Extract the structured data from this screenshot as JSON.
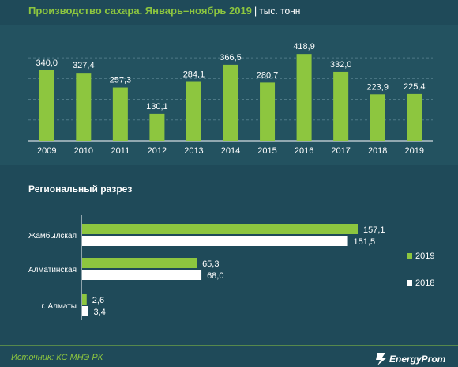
{
  "title": "Производство сахара. Январь–ноябрь 2019",
  "title_separator": "|",
  "unit": "тыс. тонн",
  "source": "Источник: КС МНЭ РК",
  "brand": "EnergyProm",
  "colors": {
    "background": "#1f4a59",
    "bar_2019": "#8dc63f",
    "bar_2018": "#ffffff",
    "grid": "#4e7a87",
    "text": "#ffffff",
    "accent": "#8dc63f"
  },
  "chart_data": [
    {
      "type": "bar",
      "title": "",
      "categories": [
        "2009",
        "2010",
        "2011",
        "2012",
        "2013",
        "2014",
        "2015",
        "2016",
        "2017",
        "2018",
        "2019"
      ],
      "values": [
        340.0,
        327.4,
        257.3,
        130.1,
        284.1,
        366.5,
        280.7,
        418.9,
        332.0,
        223.9,
        225.4
      ],
      "value_labels": [
        "340,0",
        "327,4",
        "257,3",
        "130,1",
        "284,1",
        "366,5",
        "280,7",
        "418,9",
        "332,0",
        "223,9",
        "225,4"
      ],
      "ylim": [
        0,
        450
      ],
      "grid": true,
      "legend": "none"
    },
    {
      "type": "bar",
      "orientation": "horizontal",
      "title": "Региональный  разрез",
      "categories": [
        "Жамбылская",
        "Алматинская",
        "г. Алматы"
      ],
      "series": [
        {
          "name": "2019",
          "values": [
            157.1,
            65.3,
            2.6
          ],
          "labels": [
            "157,1",
            "65,3",
            "2,6"
          ]
        },
        {
          "name": "2018",
          "values": [
            151.5,
            68.0,
            3.4
          ],
          "labels": [
            "151,5",
            "68,0",
            "3,4"
          ]
        }
      ],
      "xlim": [
        0,
        157.1
      ],
      "legend": "right"
    }
  ]
}
